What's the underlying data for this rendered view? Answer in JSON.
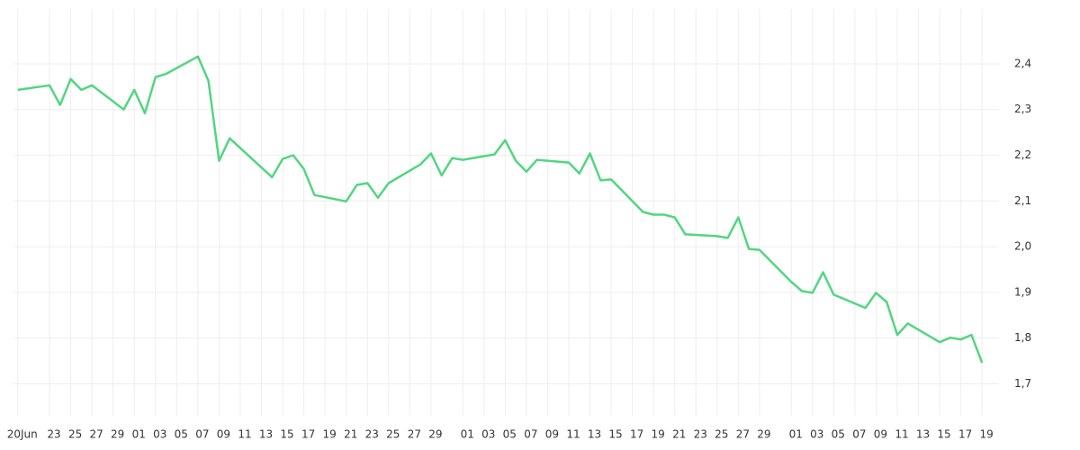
{
  "chart_data": {
    "type": "line",
    "x": [
      0,
      3,
      4,
      5,
      6,
      7,
      10,
      11,
      12,
      13,
      14,
      17,
      18,
      19,
      20,
      24,
      25,
      26,
      27,
      28,
      31,
      32,
      33,
      34,
      35,
      38,
      39,
      40,
      41,
      42,
      45,
      46,
      47,
      48,
      49,
      52,
      53,
      54,
      55,
      56,
      59,
      60,
      61,
      62,
      63,
      66,
      67,
      68,
      69,
      70,
      73,
      74,
      75,
      76,
      77,
      80,
      81,
      82,
      83,
      84,
      87,
      88,
      89,
      90,
      91
    ],
    "series": [
      {
        "color": "#52d681",
        "values": [
          2.343,
          2.353,
          2.31,
          2.367,
          2.343,
          2.353,
          2.3,
          2.343,
          2.292,
          2.371,
          2.378,
          2.416,
          2.363,
          2.188,
          2.237,
          2.152,
          2.192,
          2.2,
          2.17,
          2.113,
          2.099,
          2.135,
          2.139,
          2.107,
          2.139,
          2.18,
          2.204,
          2.156,
          2.194,
          2.19,
          2.202,
          2.233,
          2.188,
          2.164,
          2.19,
          2.184,
          2.16,
          2.204,
          2.145,
          2.147,
          2.076,
          2.07,
          2.07,
          2.064,
          2.027,
          2.023,
          2.019,
          2.064,
          1.995,
          1.993,
          1.923,
          1.903,
          1.899,
          1.944,
          1.895,
          1.866,
          1.899,
          1.879,
          1.807,
          1.832,
          1.791,
          1.801,
          1.797,
          1.807,
          1.746
        ]
      }
    ],
    "xlim": [
      -0.4,
      92.6
    ],
    "xticks": [
      {
        "value": 0,
        "label": "20Jun"
      },
      {
        "value": 3,
        "label": "23"
      },
      {
        "value": 5,
        "label": "25"
      },
      {
        "value": 7,
        "label": "27"
      },
      {
        "value": 9,
        "label": "29"
      },
      {
        "value": 11,
        "label": "01"
      },
      {
        "value": 13,
        "label": "03"
      },
      {
        "value": 15,
        "label": "05"
      },
      {
        "value": 17,
        "label": "07"
      },
      {
        "value": 19,
        "label": "09"
      },
      {
        "value": 21,
        "label": "11"
      },
      {
        "value": 23,
        "label": "13"
      },
      {
        "value": 25,
        "label": "15"
      },
      {
        "value": 27,
        "label": "17"
      },
      {
        "value": 29,
        "label": "19"
      },
      {
        "value": 31,
        "label": "21"
      },
      {
        "value": 33,
        "label": "23"
      },
      {
        "value": 35,
        "label": "25"
      },
      {
        "value": 37,
        "label": "27"
      },
      {
        "value": 39,
        "label": "29"
      },
      {
        "value": 42,
        "label": "01"
      },
      {
        "value": 44,
        "label": "03"
      },
      {
        "value": 46,
        "label": "05"
      },
      {
        "value": 48,
        "label": "07"
      },
      {
        "value": 50,
        "label": "09"
      },
      {
        "value": 52,
        "label": "11"
      },
      {
        "value": 54,
        "label": "13"
      },
      {
        "value": 56,
        "label": "15"
      },
      {
        "value": 58,
        "label": "17"
      },
      {
        "value": 60,
        "label": "19"
      },
      {
        "value": 62,
        "label": "21"
      },
      {
        "value": 64,
        "label": "23"
      },
      {
        "value": 66,
        "label": "25"
      },
      {
        "value": 68,
        "label": "27"
      },
      {
        "value": 70,
        "label": "29"
      },
      {
        "value": 73,
        "label": "01"
      },
      {
        "value": 75,
        "label": "03"
      },
      {
        "value": 77,
        "label": "05"
      },
      {
        "value": 79,
        "label": "07"
      },
      {
        "value": 81,
        "label": "09"
      },
      {
        "value": 83,
        "label": "11"
      },
      {
        "value": 85,
        "label": "13"
      },
      {
        "value": 87,
        "label": "15"
      },
      {
        "value": 89,
        "label": "17"
      },
      {
        "value": 91,
        "label": "19"
      }
    ],
    "ylim": [
      1.63,
      2.52
    ],
    "yticks": [
      {
        "value": 1.7,
        "label": "1,7"
      },
      {
        "value": 1.8,
        "label": "1,8"
      },
      {
        "value": 1.9,
        "label": "1,9"
      },
      {
        "value": 2.0,
        "label": "2,0"
      },
      {
        "value": 2.1,
        "label": "2,1"
      },
      {
        "value": 2.2,
        "label": "2,2"
      },
      {
        "value": 2.3,
        "label": "2,3"
      },
      {
        "value": 2.4,
        "label": "2,4"
      }
    ],
    "grid": true
  }
}
